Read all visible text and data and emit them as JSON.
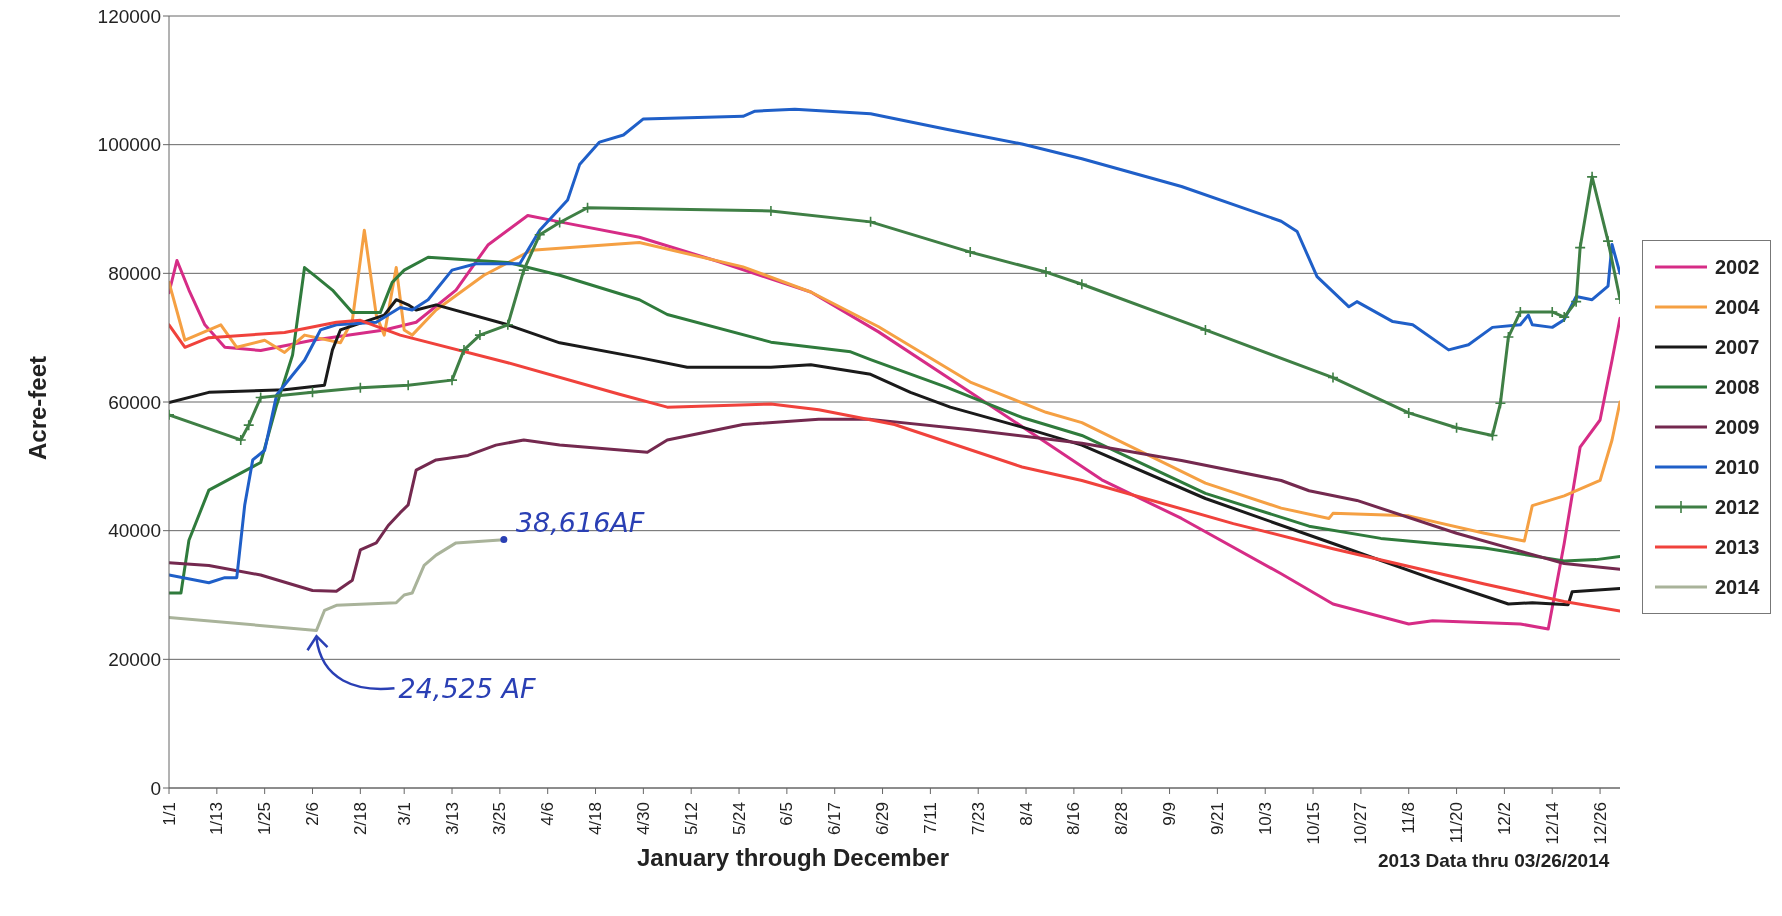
{
  "chart_data": {
    "type": "line",
    "xlabel": "January through December",
    "ylabel": "Acre-feet",
    "xlim": [
      "--01-01",
      "--12-31"
    ],
    "xticks": [
      {
        "value": "--01-01",
        "label": "1/1"
      },
      {
        "value": "--01-13",
        "label": "1/13"
      },
      {
        "value": "--01-25",
        "label": "1/25"
      },
      {
        "value": "--02-06",
        "label": "2/6"
      },
      {
        "value": "--02-18",
        "label": "2/18"
      },
      {
        "value": "--03-01",
        "label": "3/1"
      },
      {
        "value": "--03-13",
        "label": "3/13"
      },
      {
        "value": "--03-25",
        "label": "3/25"
      },
      {
        "value": "--04-06",
        "label": "4/6"
      },
      {
        "value": "--04-18",
        "label": "4/18"
      },
      {
        "value": "--04-30",
        "label": "4/30"
      },
      {
        "value": "--05-12",
        "label": "5/12"
      },
      {
        "value": "--05-24",
        "label": "5/24"
      },
      {
        "value": "--06-05",
        "label": "6/5"
      },
      {
        "value": "--06-17",
        "label": "6/17"
      },
      {
        "value": "--06-29",
        "label": "6/29"
      },
      {
        "value": "--07-11",
        "label": "7/11"
      },
      {
        "value": "--07-23",
        "label": "7/23"
      },
      {
        "value": "--08-04",
        "label": "8/4"
      },
      {
        "value": "--08-16",
        "label": "8/16"
      },
      {
        "value": "--08-28",
        "label": "8/28"
      },
      {
        "value": "--09-09",
        "label": "9/9"
      },
      {
        "value": "--09-21",
        "label": "9/21"
      },
      {
        "value": "--10-03",
        "label": "10/3"
      },
      {
        "value": "--10-15",
        "label": "10/15"
      },
      {
        "value": "--10-27",
        "label": "10/27"
      },
      {
        "value": "--11-08",
        "label": "11/8"
      },
      {
        "value": "--11-20",
        "label": "11/20"
      },
      {
        "value": "--12-02",
        "label": "12/2"
      },
      {
        "value": "--12-14",
        "label": "12/14"
      },
      {
        "value": "--12-26",
        "label": "12/26"
      }
    ],
    "ylim": [
      0,
      120000
    ],
    "yticks": [
      0,
      20000,
      40000,
      60000,
      80000,
      100000,
      120000
    ],
    "grid": "y",
    "legend": "right",
    "series": [
      {
        "name": "2002",
        "color": "#d62c86",
        "x": [
          "--01-01",
          "--01-03",
          "--01-06",
          "--01-10",
          "--01-15",
          "--01-24",
          "--02-06",
          "--02-24",
          "--03-04",
          "--03-14",
          "--03-22",
          "--04-01",
          "--04-09",
          "--04-29",
          "--05-19",
          "--06-11",
          "--06-28",
          "--07-21",
          "--08-09",
          "--08-23",
          "--09-12",
          "--10-07",
          "--10-20",
          "--11-08",
          "--11-14",
          "--12-06",
          "--12-13",
          "--12-17",
          "--12-21",
          "--12-26",
          "--12-29",
          "--12-31"
        ],
        "values": [
          77000,
          82000,
          77400,
          72000,
          68500,
          68000,
          69600,
          71200,
          72400,
          77400,
          84400,
          89000,
          88000,
          85600,
          81800,
          77100,
          70900,
          61500,
          53700,
          47900,
          41900,
          33300,
          28600,
          25500,
          26000,
          25500,
          24700,
          38000,
          53000,
          57200,
          66500,
          73000
        ]
      },
      {
        "name": "2004",
        "color": "#f5a043",
        "x": [
          "--01-01",
          "--01-05",
          "--01-14",
          "--01-18",
          "--01-25",
          "--01-30",
          "--02-04",
          "--02-13",
          "--02-16",
          "--02-19",
          "--02-22",
          "--02-24",
          "--02-27",
          "--03-01",
          "--03-03",
          "--03-09",
          "--03-21",
          "--04-02",
          "--04-29",
          "--05-25",
          "--06-11",
          "--06-28",
          "--07-21",
          "--08-09",
          "--08-18",
          "--09-18",
          "--10-07",
          "--10-19",
          "--10-20",
          "--11-08",
          "--11-27",
          "--12-07",
          "--12-09",
          "--12-17",
          "--12-26",
          "--12-29",
          "--12-31"
        ],
        "values": [
          78600,
          69600,
          72000,
          68500,
          69600,
          67700,
          70400,
          69200,
          72700,
          86700,
          73500,
          70400,
          80900,
          71200,
          70400,
          74300,
          79700,
          83600,
          84800,
          81000,
          77100,
          71700,
          63100,
          58400,
          56800,
          47400,
          43500,
          41900,
          42700,
          42300,
          39600,
          38400,
          43900,
          45400,
          47800,
          54100,
          60000
        ]
      },
      {
        "name": "2007",
        "color": "#1a1a1a",
        "x": [
          "--01-01",
          "--01-11",
          "--01-30",
          "--02-09",
          "--02-11",
          "--02-13",
          "--02-24",
          "--02-27",
          "--03-02",
          "--03-04",
          "--03-09",
          "--03-27",
          "--04-09",
          "--04-29",
          "--05-11",
          "--06-01",
          "--06-11",
          "--06-26",
          "--07-06",
          "--07-16",
          "--08-03",
          "--08-18",
          "--09-18",
          "--10-20",
          "--11-14",
          "--12-03",
          "--12-09",
          "--12-18",
          "--12-19",
          "--12-31"
        ],
        "values": [
          59900,
          61500,
          61900,
          62600,
          68100,
          71200,
          73500,
          75900,
          75100,
          74300,
          75100,
          72000,
          69200,
          66900,
          65400,
          65400,
          65800,
          64300,
          61500,
          59200,
          56100,
          53300,
          45000,
          38000,
          32500,
          28600,
          28800,
          28500,
          30500,
          31000
        ]
      },
      {
        "name": "2008",
        "color": "#2f7b3c",
        "x": [
          "--01-01",
          "--01-04",
          "--01-06",
          "--01-11",
          "--01-24",
          "--01-28",
          "--02-01",
          "--02-04",
          "--02-07",
          "--02-11",
          "--02-16",
          "--02-23",
          "--02-26",
          "--03-01",
          "--03-07",
          "--03-27",
          "--04-09",
          "--04-29",
          "--05-06",
          "--06-01",
          "--06-21",
          "--06-26",
          "--07-15",
          "--08-03",
          "--08-18",
          "--09-18",
          "--10-14",
          "--11-01",
          "--11-27",
          "--12-17",
          "--12-25",
          "--12-31"
        ],
        "values": [
          30300,
          30300,
          38500,
          46300,
          50600,
          59500,
          67300,
          80900,
          79400,
          77400,
          73900,
          73900,
          78600,
          80500,
          82500,
          81700,
          79700,
          75900,
          73600,
          69300,
          67800,
          66600,
          62300,
          57600,
          54800,
          45800,
          40700,
          38800,
          37300,
          35300,
          35500,
          36000
        ]
      },
      {
        "name": "2009",
        "color": "#74294f",
        "x": [
          "--01-01",
          "--01-11",
          "--01-24",
          "--02-06",
          "--02-12",
          "--02-16",
          "--02-18",
          "--02-22",
          "--02-25",
          "--02-28",
          "--03-02",
          "--03-04",
          "--03-09",
          "--03-17",
          "--03-24",
          "--03-31",
          "--04-09",
          "--05-01",
          "--05-06",
          "--05-25",
          "--06-13",
          "--06-26",
          "--07-21",
          "--08-18",
          "--09-12",
          "--10-07",
          "--10-14",
          "--10-26",
          "--11-20",
          "--12-17",
          "--12-31"
        ],
        "values": [
          35000,
          34600,
          33100,
          30700,
          30600,
          32300,
          37000,
          38100,
          40800,
          42800,
          44000,
          49400,
          51000,
          51700,
          53300,
          54100,
          53300,
          52200,
          54100,
          56500,
          57300,
          57300,
          55700,
          53600,
          50900,
          47800,
          46200,
          44700,
          39600,
          34900,
          34000
        ]
      },
      {
        "name": "2010",
        "color": "#1f5fc8",
        "x": [
          "--01-01",
          "--01-11",
          "--01-15",
          "--01-18",
          "--01-20",
          "--01-22",
          "--01-25",
          "--01-28",
          "--02-01",
          "--02-04",
          "--02-08",
          "--02-12",
          "--02-22",
          "--02-28",
          "--03-03",
          "--03-07",
          "--03-13",
          "--03-19",
          "--03-30",
          "--04-04",
          "--04-11",
          "--04-14",
          "--04-19",
          "--04-25",
          "--04-30",
          "--05-25",
          "--05-28",
          "--06-07",
          "--06-26",
          "--07-15",
          "--08-03",
          "--08-18",
          "--09-12",
          "--10-07",
          "--10-11",
          "--10-16",
          "--10-24",
          "--10-26",
          "--11-04",
          "--11-09",
          "--11-18",
          "--11-23",
          "--11-29",
          "--12-06",
          "--12-08",
          "--12-09",
          "--12-14",
          "--12-17",
          "--12-20",
          "--12-24",
          "--12-28",
          "--12-29",
          "--12-31"
        ],
        "values": [
          33100,
          31900,
          32700,
          32700,
          44000,
          51000,
          52500,
          61100,
          64200,
          66500,
          71200,
          72000,
          72400,
          74700,
          74300,
          75900,
          80500,
          81500,
          81500,
          86700,
          91400,
          96900,
          100400,
          101500,
          104000,
          104400,
          105200,
          105500,
          104800,
          102400,
          100100,
          97800,
          93500,
          88100,
          86500,
          79500,
          74800,
          75600,
          72500,
          72000,
          68100,
          68900,
          71600,
          72000,
          73500,
          72000,
          71600,
          72800,
          76400,
          75900,
          78000,
          84500,
          80000
        ]
      },
      {
        "name": "2012",
        "color": "#3f7f45",
        "marker": "cross",
        "x": [
          "--01-01",
          "--01-19",
          "--01-21",
          "--01-24",
          "--02-06",
          "--02-18",
          "--03-02",
          "--03-13",
          "--03-16",
          "--03-20",
          "--03-27",
          "--03-31",
          "--04-04",
          "--04-09",
          "--04-16",
          "--06-01",
          "--06-26",
          "--07-21",
          "--08-09",
          "--08-18",
          "--09-18",
          "--10-20",
          "--11-08",
          "--11-20",
          "--11-29",
          "--12-01",
          "--12-03",
          "--12-06",
          "--12-14",
          "--12-17",
          "--12-20",
          "--12-21",
          "--12-24",
          "--12-28",
          "--12-31"
        ],
        "values": [
          58000,
          54100,
          56400,
          60700,
          61500,
          62200,
          62600,
          63400,
          68100,
          70400,
          72000,
          80500,
          86000,
          87900,
          90200,
          89700,
          88000,
          83300,
          80200,
          78300,
          71200,
          63800,
          58300,
          56000,
          54800,
          59800,
          70100,
          74000,
          74000,
          73200,
          75600,
          84000,
          95000,
          85000,
          76000
        ]
      },
      {
        "name": "2013",
        "color": "#f0423c",
        "x": [
          "--01-01",
          "--01-05",
          "--01-11",
          "--01-30",
          "--02-12",
          "--02-18",
          "--02-28",
          "--03-27",
          "--04-24",
          "--05-06",
          "--06-01",
          "--06-13",
          "--07-02",
          "--08-03",
          "--08-18",
          "--09-25",
          "--10-20",
          "--11-27",
          "--12-17",
          "--12-31"
        ],
        "values": [
          72000,
          68500,
          70000,
          70800,
          72400,
          72700,
          70400,
          66100,
          61200,
          59200,
          59700,
          58800,
          56500,
          49900,
          47800,
          41100,
          37200,
          31700,
          29000,
          27500
        ]
      },
      {
        "name": "2014",
        "color": "#a9b39a",
        "x": [
          "--01-01",
          "--02-07",
          "--02-09",
          "--02-12",
          "--02-27",
          "--03-01",
          "--03-03",
          "--03-06",
          "--03-09",
          "--03-14",
          "--03-26"
        ],
        "values": [
          26500,
          24500,
          27600,
          28400,
          28800,
          30000,
          30300,
          34600,
          36200,
          38100,
          38600
        ]
      }
    ],
    "annotations": [
      {
        "text": "24,525 AF",
        "x": "--02-07",
        "y": 24525
      },
      {
        "text": "38,616AF",
        "x": "--03-26",
        "y": 38616
      },
      "2013 Data thru 03/26/2014"
    ]
  }
}
